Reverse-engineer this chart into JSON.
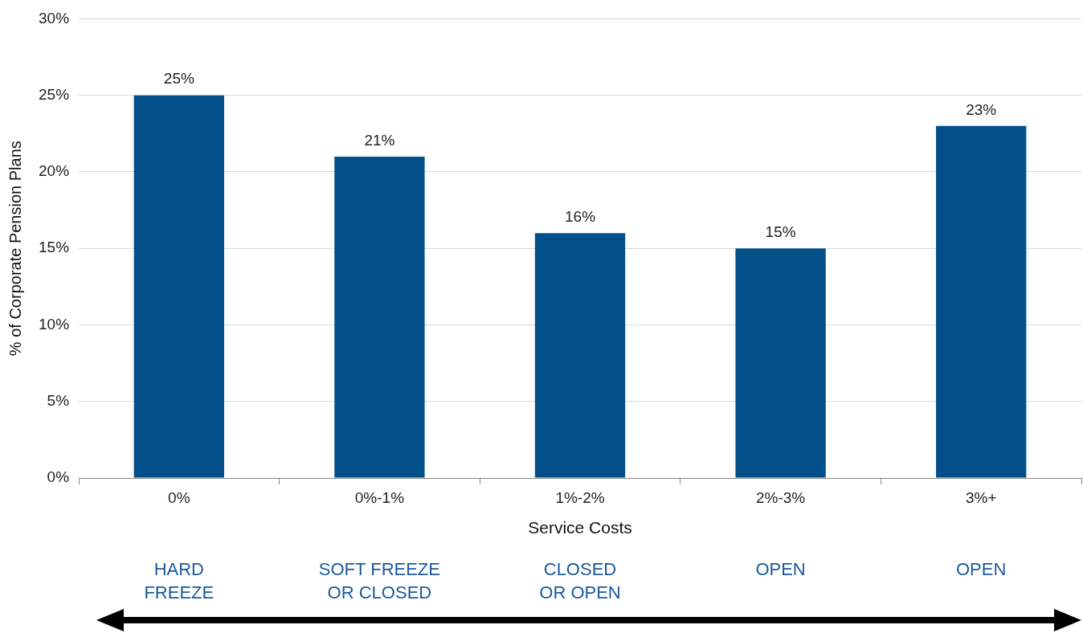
{
  "chart_data": {
    "type": "bar",
    "categories": [
      "0%",
      "0%-1%",
      "1%-2%",
      "2%-3%",
      "3%+"
    ],
    "values": [
      25,
      21,
      16,
      15,
      23
    ],
    "color": "#034f89",
    "xlabel": "Service Costs",
    "ylabel": "% of Corporate Pension Plans",
    "ylim": [
      0,
      30
    ],
    "yticks": [
      {
        "value": 0,
        "label": "0%"
      },
      {
        "value": 5,
        "label": "5%"
      },
      {
        "value": 10,
        "label": "10%"
      },
      {
        "value": 15,
        "label": "15%"
      },
      {
        "value": 20,
        "label": "20%"
      },
      {
        "value": 25,
        "label": "25%"
      },
      {
        "value": 30,
        "label": "30%"
      }
    ],
    "grid": "y",
    "legend": false,
    "value_labels": [
      "25%",
      "21%",
      "16%",
      "15%",
      "23%"
    ],
    "annotations": [
      "HARD\nFREEZE",
      "SOFT FREEZE\nOR CLOSED",
      "CLOSED\nOR OPEN",
      "OPEN",
      "OPEN"
    ]
  }
}
